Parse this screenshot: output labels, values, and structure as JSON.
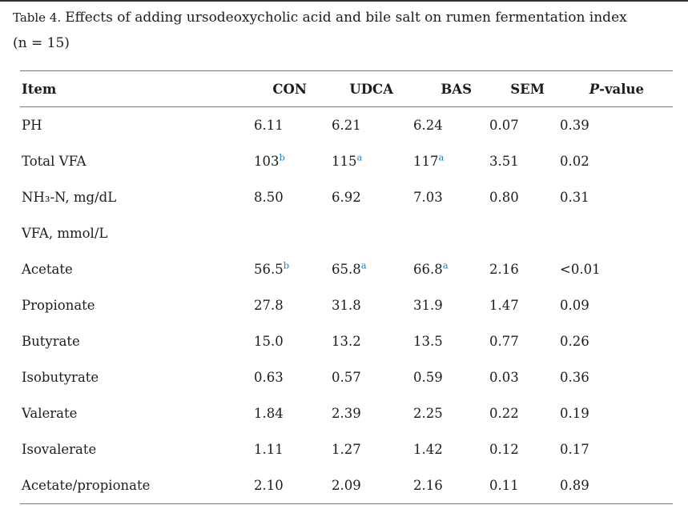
{
  "caption": {
    "label": "Table 4.",
    "text": "Effects of adding ursodeoxycholic acid and bile salt on rumen fermentation index",
    "note": "(n = 15)"
  },
  "colors": {
    "text": "#1c1c1c",
    "rule": "#777777",
    "footnote_link_blue": "#1b7dc0"
  },
  "table": {
    "headers": {
      "item": "Item",
      "con": "CON",
      "udca": "UDCA",
      "bas": "BAS",
      "sem": "SEM",
      "pvalue": "P-value"
    },
    "rows": [
      {
        "item": "PH",
        "con": {
          "v": "6.11"
        },
        "udca": {
          "v": "6.21"
        },
        "bas": {
          "v": "6.24"
        },
        "sem": {
          "v": "0.07"
        },
        "pvalue": {
          "v": "0.39"
        }
      },
      {
        "item": "Total VFA",
        "con": {
          "v": "103",
          "s": "b"
        },
        "udca": {
          "v": "115",
          "s": "a"
        },
        "bas": {
          "v": "117",
          "s": "a"
        },
        "sem": {
          "v": "3.51"
        },
        "pvalue": {
          "v": "0.02"
        }
      },
      {
        "item": "NH₃-N, mg/dL",
        "con": {
          "v": "8.50"
        },
        "udca": {
          "v": "6.92"
        },
        "bas": {
          "v": "7.03"
        },
        "sem": {
          "v": "0.80"
        },
        "pvalue": {
          "v": "0.31"
        }
      },
      {
        "item": "VFA, mmol/L",
        "con": {
          "v": ""
        },
        "udca": {
          "v": ""
        },
        "bas": {
          "v": ""
        },
        "sem": {
          "v": ""
        },
        "pvalue": {
          "v": ""
        }
      },
      {
        "item": "Acetate",
        "con": {
          "v": "56.5",
          "s": "b"
        },
        "udca": {
          "v": "65.8",
          "s": "a"
        },
        "bas": {
          "v": "66.8",
          "s": "a"
        },
        "sem": {
          "v": "2.16"
        },
        "pvalue": {
          "v": "<0.01"
        }
      },
      {
        "item": "Propionate",
        "con": {
          "v": "27.8"
        },
        "udca": {
          "v": "31.8"
        },
        "bas": {
          "v": "31.9"
        },
        "sem": {
          "v": "1.47"
        },
        "pvalue": {
          "v": "0.09"
        }
      },
      {
        "item": "Butyrate",
        "con": {
          "v": "15.0"
        },
        "udca": {
          "v": "13.2"
        },
        "bas": {
          "v": "13.5"
        },
        "sem": {
          "v": "0.77"
        },
        "pvalue": {
          "v": "0.26"
        }
      },
      {
        "item": "Isobutyrate",
        "con": {
          "v": "0.63"
        },
        "udca": {
          "v": "0.57"
        },
        "bas": {
          "v": "0.59"
        },
        "sem": {
          "v": "0.03"
        },
        "pvalue": {
          "v": "0.36"
        }
      },
      {
        "item": "Valerate",
        "con": {
          "v": "1.84"
        },
        "udca": {
          "v": "2.39"
        },
        "bas": {
          "v": "2.25"
        },
        "sem": {
          "v": "0.22"
        },
        "pvalue": {
          "v": "0.19"
        }
      },
      {
        "item": "Isovalerate",
        "con": {
          "v": "1.11"
        },
        "udca": {
          "v": "1.27"
        },
        "bas": {
          "v": "1.42"
        },
        "sem": {
          "v": "0.12"
        },
        "pvalue": {
          "v": "0.17"
        }
      },
      {
        "item": "Acetate/propionate",
        "con": {
          "v": "2.10"
        },
        "udca": {
          "v": "2.09"
        },
        "bas": {
          "v": "2.16"
        },
        "sem": {
          "v": "0.11"
        },
        "pvalue": {
          "v": "0.89"
        }
      }
    ]
  }
}
